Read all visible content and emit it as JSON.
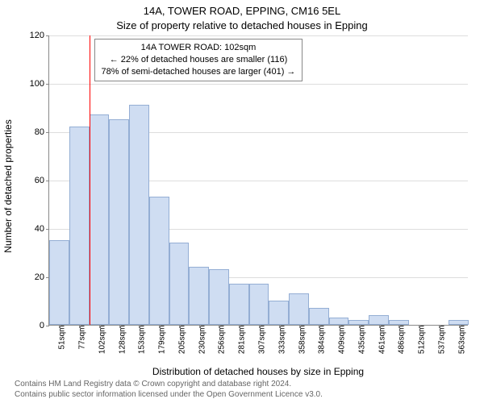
{
  "titles": {
    "main": "14A, TOWER ROAD, EPPING, CM16 5EL",
    "sub": "Size of property relative to detached houses in Epping"
  },
  "axes": {
    "ylabel": "Number of detached properties",
    "xlabel": "Distribution of detached houses by size in Epping",
    "ylim": [
      0,
      120
    ],
    "ytick_step": 20,
    "label_fontsize": 12,
    "tick_fontsize": 11
  },
  "histogram": {
    "type": "histogram",
    "bar_fill": "#cfddf2",
    "bar_stroke": "#94aed4",
    "background_color": "#ffffff",
    "grid_color": "#dddddd",
    "xticks": [
      "51sqm",
      "77sqm",
      "102sqm",
      "128sqm",
      "153sqm",
      "179sqm",
      "205sqm",
      "230sqm",
      "256sqm",
      "281sqm",
      "307sqm",
      "333sqm",
      "358sqm",
      "384sqm",
      "409sqm",
      "435sqm",
      "461sqm",
      "486sqm",
      "512sqm",
      "537sqm",
      "563sqm"
    ],
    "values": [
      35,
      82,
      87,
      85,
      91,
      53,
      34,
      24,
      23,
      17,
      17,
      10,
      13,
      7,
      3,
      2,
      4,
      2,
      0,
      0,
      2
    ],
    "bar_width_ratio": 1.0
  },
  "marker": {
    "color": "#ff0000",
    "at_category_index": 2
  },
  "annotation": {
    "line1": "14A TOWER ROAD: 102sqm",
    "line2": "← 22% of detached houses are smaller (116)",
    "line3": "78% of semi-detached houses are larger (401) →",
    "border_color": "#888888",
    "background_color": "#ffffff",
    "fontsize": 11
  },
  "footer": {
    "line1": "Contains HM Land Registry data © Crown copyright and database right 2024.",
    "line2": "Contains public sector information licensed under the Open Government Licence v3.0."
  }
}
